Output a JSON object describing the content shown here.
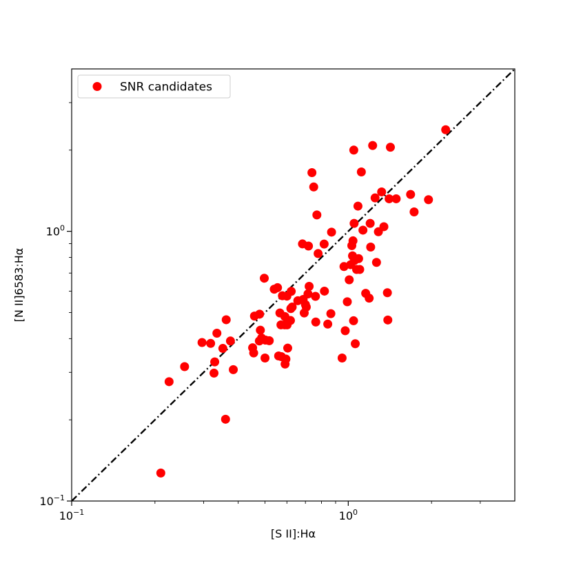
{
  "chart_data": {
    "type": "scatter",
    "xlabel": "[S II]:Hα",
    "ylabel": "[N II]6583:Hα",
    "xscale": "log",
    "yscale": "log",
    "xlim": [
      0.1,
      4.0
    ],
    "ylim": [
      0.1,
      4.0
    ],
    "grid": false,
    "legend_position": "top-left",
    "x_tick_labels": [
      {
        "value": 0.1,
        "base": "10",
        "exp": "−1"
      },
      {
        "value": 1,
        "base": "10",
        "exp": "0"
      }
    ],
    "y_tick_labels": [
      {
        "value": 0.1,
        "base": "10",
        "exp": "−1"
      },
      {
        "value": 1,
        "base": "10",
        "exp": "0"
      }
    ],
    "reference_line": {
      "description": "one-to-one",
      "style": "dash-dot",
      "color": "#000000"
    },
    "series": [
      {
        "name": "SNR candidates",
        "color": "#ff0000",
        "points": [
          [
            0.21,
            0.127
          ],
          [
            0.225,
            0.277
          ],
          [
            0.256,
            0.315
          ],
          [
            0.296,
            0.387
          ],
          [
            0.318,
            0.384
          ],
          [
            0.327,
            0.298
          ],
          [
            0.329,
            0.328
          ],
          [
            0.335,
            0.419
          ],
          [
            0.352,
            0.368
          ],
          [
            0.36,
            0.201
          ],
          [
            0.362,
            0.47
          ],
          [
            0.375,
            0.392
          ],
          [
            0.384,
            0.307
          ],
          [
            0.451,
            0.37
          ],
          [
            0.455,
            0.354
          ],
          [
            0.458,
            0.485
          ],
          [
            0.477,
            0.392
          ],
          [
            0.478,
            0.493
          ],
          [
            0.481,
            0.43
          ],
          [
            0.486,
            0.402
          ],
          [
            0.497,
            0.67
          ],
          [
            0.5,
            0.339
          ],
          [
            0.502,
            0.395
          ],
          [
            0.518,
            0.393
          ],
          [
            0.54,
            0.61
          ],
          [
            0.555,
            0.618
          ],
          [
            0.56,
            0.345
          ],
          [
            0.566,
            0.498
          ],
          [
            0.571,
            0.45
          ],
          [
            0.573,
            0.343
          ],
          [
            0.578,
            0.577
          ],
          [
            0.589,
            0.45
          ],
          [
            0.59,
            0.483
          ],
          [
            0.591,
            0.322
          ],
          [
            0.595,
            0.336
          ],
          [
            0.6,
            0.575
          ],
          [
            0.601,
            0.45
          ],
          [
            0.604,
            0.369
          ],
          [
            0.618,
            0.467
          ],
          [
            0.62,
            0.517
          ],
          [
            0.622,
            0.599
          ],
          [
            0.627,
            0.524
          ],
          [
            0.657,
            0.553
          ],
          [
            0.683,
            0.898
          ],
          [
            0.687,
            0.559
          ],
          [
            0.693,
            0.498
          ],
          [
            0.7,
            0.535
          ],
          [
            0.705,
            0.524
          ],
          [
            0.715,
            0.586
          ],
          [
            0.718,
            0.882
          ],
          [
            0.722,
            0.625
          ],
          [
            0.739,
            1.65
          ],
          [
            0.75,
            1.46
          ],
          [
            0.761,
            0.574
          ],
          [
            0.763,
            0.461
          ],
          [
            0.77,
            1.15
          ],
          [
            0.778,
            0.827
          ],
          [
            0.818,
            0.897
          ],
          [
            0.82,
            0.6
          ],
          [
            0.843,
            0.453
          ],
          [
            0.865,
            0.495
          ],
          [
            0.87,
            0.993
          ],
          [
            0.95,
            0.339
          ],
          [
            0.965,
            0.74
          ],
          [
            0.975,
            0.428
          ],
          [
            0.992,
            0.548
          ],
          [
            1.008,
            0.661
          ],
          [
            1.02,
            0.752
          ],
          [
            1.03,
            0.885
          ],
          [
            1.036,
            0.811
          ],
          [
            1.04,
            0.922
          ],
          [
            1.045,
            0.466
          ],
          [
            1.047,
            2.0
          ],
          [
            1.05,
            1.07
          ],
          [
            1.052,
            0.779
          ],
          [
            1.06,
            0.383
          ],
          [
            1.072,
            0.722
          ],
          [
            1.084,
            1.24
          ],
          [
            1.09,
            0.792
          ],
          [
            1.1,
            0.722
          ],
          [
            1.115,
            1.66
          ],
          [
            1.13,
            1.01
          ],
          [
            1.156,
            0.589
          ],
          [
            1.19,
            0.565
          ],
          [
            1.2,
            1.07
          ],
          [
            1.205,
            0.874
          ],
          [
            1.225,
            2.08
          ],
          [
            1.25,
            1.33
          ],
          [
            1.265,
            0.767
          ],
          [
            1.285,
            0.996
          ],
          [
            1.32,
            1.4
          ],
          [
            1.345,
            1.04
          ],
          [
            1.385,
            0.592
          ],
          [
            1.39,
            0.469
          ],
          [
            1.405,
            1.32
          ],
          [
            1.42,
            2.05
          ],
          [
            1.49,
            1.32
          ],
          [
            1.68,
            1.37
          ],
          [
            1.73,
            1.18
          ],
          [
            1.95,
            1.31
          ],
          [
            2.25,
            2.38
          ]
        ]
      }
    ]
  }
}
